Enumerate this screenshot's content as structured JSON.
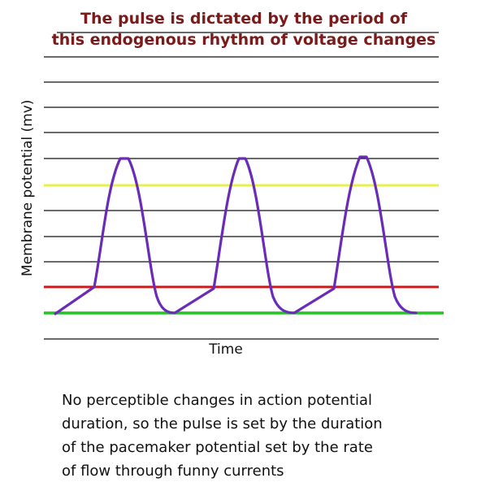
{
  "title": {
    "line1": "The pulse is dictated by the period of",
    "line2": "this endogenous rhythm of voltage changes"
  },
  "axes": {
    "ylabel": "Membrane potential (mv)",
    "xlabel": "Time"
  },
  "caption": {
    "line1": "No perceptible changes in action potential",
    "line2": "duration, so the pulse is set by the duration",
    "line3": "of the pacemaker potential set by the rate",
    "line4": "of flow through funny currents"
  },
  "colors": {
    "title": "#7a1a1a",
    "threshold_line": "#e8f04a",
    "red_line": "#d01818",
    "baseline": "#22c422",
    "trace": "#6a2bb8",
    "ruled_lines": "#111111"
  }
}
